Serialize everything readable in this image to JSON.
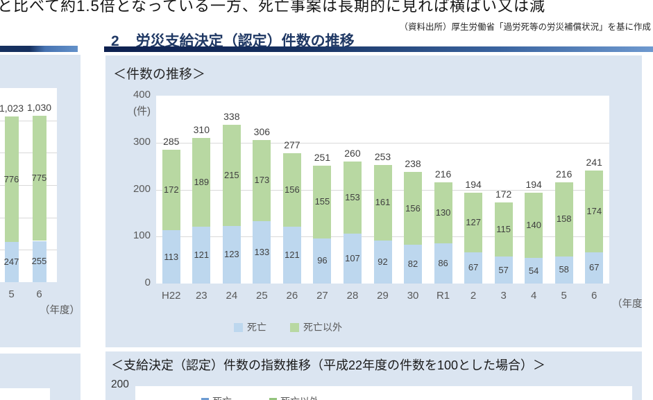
{
  "page": {
    "top_text": "と比べて約1.5倍となっている一方、死亡事案は長期的に見れば横ばい又は減",
    "source_note": "（資料出所）厚生労働省「過労死等の労災補償状況」を基に作成"
  },
  "section_header": {
    "number": "2",
    "title": "労災支給決定（認定）件数の推移"
  },
  "colors": {
    "death_bar": "#bdd7ee",
    "non_death_bar": "#b8d8a2",
    "panel_background": "#dbe5f1",
    "header_navy": "#1f3864"
  },
  "chart_data": [
    {
      "type": "bar",
      "stacked": true,
      "position": "left-edge, partially cropped",
      "categories": [
        "5",
        "6"
      ],
      "series": [
        {
          "name": "死亡",
          "color": "#bdd7ee",
          "values": [
            247,
            255
          ]
        },
        {
          "name": "死亡以外",
          "color": "#b8d8a2",
          "values": [
            776,
            775
          ]
        }
      ],
      "totals": [
        "1,023",
        "1,030"
      ],
      "xlabel": "（年度）",
      "ylim": [
        0,
        1200
      ],
      "grid_step": 200
    },
    {
      "type": "bar",
      "stacked": true,
      "title": "＜件数の推移＞",
      "categories": [
        "H22",
        "23",
        "24",
        "25",
        "26",
        "27",
        "28",
        "29",
        "30",
        "R1",
        "2",
        "3",
        "4",
        "5",
        "6"
      ],
      "series": [
        {
          "name": "死亡",
          "color": "#bdd7ee",
          "values": [
            113,
            121,
            123,
            133,
            121,
            96,
            107,
            92,
            82,
            86,
            67,
            57,
            54,
            58,
            67
          ]
        },
        {
          "name": "死亡以外",
          "color": "#b8d8a2",
          "values": [
            172,
            189,
            215,
            173,
            156,
            155,
            153,
            161,
            156,
            130,
            127,
            115,
            140,
            158,
            174
          ]
        }
      ],
      "totals": [
        285,
        310,
        338,
        306,
        277,
        251,
        260,
        253,
        238,
        216,
        194,
        172,
        194,
        216,
        241
      ],
      "unit": "(件)",
      "xlabel": "（年度）",
      "ylim": [
        0,
        400
      ],
      "yticks": [
        0,
        100,
        200,
        300,
        400
      ],
      "grid_step": 100,
      "legend": [
        "死亡",
        "死亡以外"
      ],
      "legend_position": "bottom"
    },
    {
      "type": "line",
      "title": "＜支給決定（認定）件数の指数推移（平成22年度の件数を100とした場合）＞",
      "ytick_top_visible": "200",
      "legend": [
        "死亡",
        "死亡以外"
      ],
      "position": "bottom, cropped by screenshot edge"
    }
  ]
}
